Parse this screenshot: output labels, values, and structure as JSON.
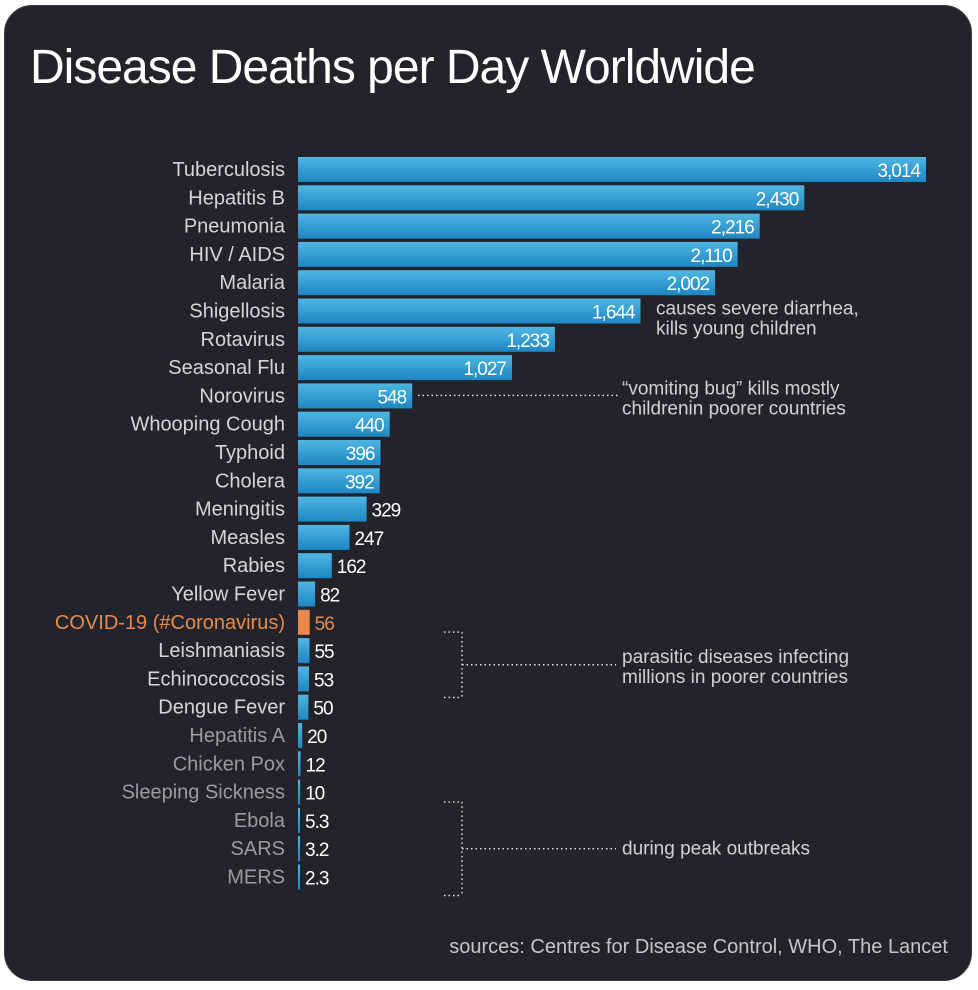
{
  "title": "Disease Deaths per Day Worldwide",
  "source": "sources: Centres for Disease Control, WHO, The Lancet",
  "colors": {
    "background": "#23242b",
    "bar_top": "#4fb6e3",
    "bar_bottom": "#1e86c2",
    "highlight": "#e8894a",
    "label": "#d4d5da",
    "label_dim": "#9a9ba1"
  },
  "chart_data": {
    "type": "bar",
    "orientation": "horizontal",
    "title": "Disease Deaths per Day Worldwide",
    "xlabel": "",
    "ylabel": "",
    "xlim": [
      0,
      3014
    ],
    "grid": false,
    "categories": [
      "Tuberculosis",
      "Hepatitis B",
      "Pneumonia",
      "HIV / AIDS",
      "Malaria",
      "Shigellosis",
      "Rotavirus",
      "Seasonal Flu",
      "Norovirus",
      "Whooping Cough",
      "Typhoid",
      "Cholera",
      "Meningitis",
      "Measles",
      "Rabies",
      "Yellow Fever",
      "COVID-19 (#Coronavirus)",
      "Leishmaniasis",
      "Echinococcosis",
      "Dengue Fever",
      "Hepatitis A",
      "Chicken Pox",
      "Sleeping Sickness",
      "Ebola",
      "SARS",
      "MERS"
    ],
    "values": [
      3014,
      2430,
      2216,
      2110,
      2002,
      1644,
      1233,
      1027,
      548,
      440,
      396,
      392,
      329,
      247,
      162,
      82,
      56,
      55,
      53,
      50,
      20,
      12,
      10,
      5.3,
      3.2,
      2.3
    ],
    "value_labels": [
      "3,014",
      "2,430",
      "2,216",
      "2,110",
      "2,002",
      "1,644",
      "1,233",
      "1,027",
      "548",
      "440",
      "396",
      "392",
      "329",
      "247",
      "162",
      "82",
      "56",
      "55",
      "53",
      "50",
      "20",
      "12",
      "10",
      "5.3",
      "3.2",
      "2.3"
    ],
    "highlight": "COVID-19 (#Coronavirus)",
    "dimmed_from": "Hepatitis A",
    "annotations": [
      {
        "text_lines": [
          "causes severe diarrhea,",
          "kills young children"
        ],
        "target": "Shigellosis"
      },
      {
        "text_lines": [
          "“vomiting bug” kills mostly",
          "childrenin poorer countries"
        ],
        "target": "Norovirus"
      },
      {
        "text_lines": [
          "parasitic diseases infecting",
          "millions in poorer countries"
        ],
        "target": [
          "Leishmaniasis",
          "Dengue Fever"
        ]
      },
      {
        "text_lines": [
          "during peak outbreaks"
        ],
        "target": [
          "Ebola",
          "MERS"
        ]
      }
    ]
  }
}
